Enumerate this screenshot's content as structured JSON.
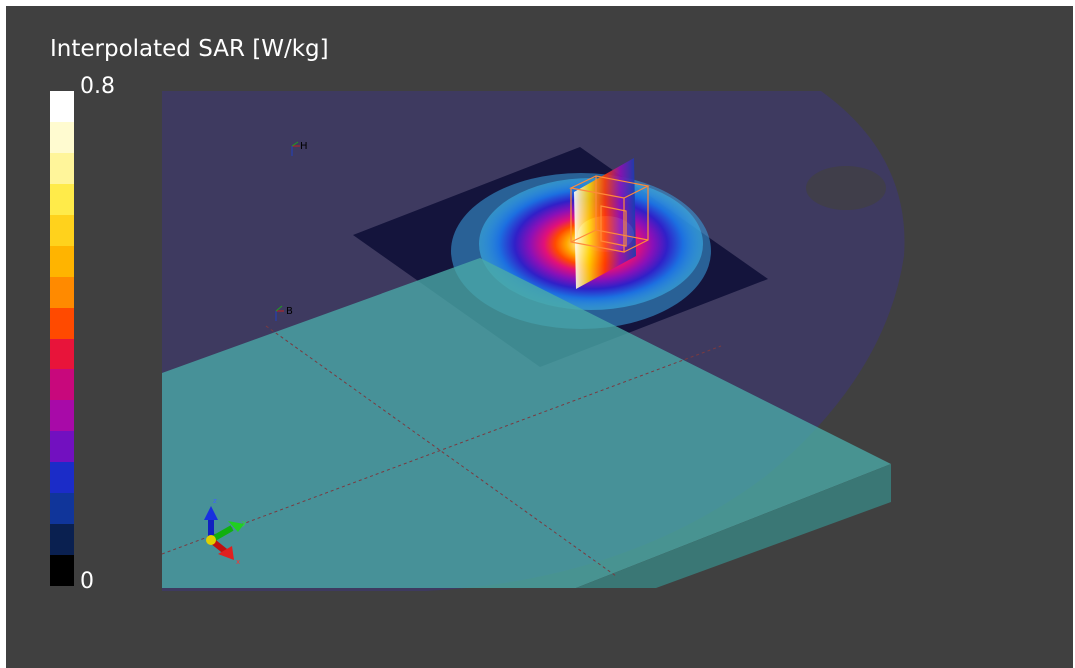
{
  "legend": {
    "title": "Interpolated SAR [W/kg]",
    "max_label": "0.8",
    "min_label": "0",
    "colors": [
      "#ffffff",
      "#fffbd0",
      "#fff59a",
      "#ffeb4a",
      "#ffd21c",
      "#ffb400",
      "#ff8a00",
      "#ff4a00",
      "#e8143a",
      "#c8087c",
      "#a80aa8",
      "#7210c0",
      "#1b2cc8",
      "#10359a",
      "#0a2050",
      "#000000"
    ]
  },
  "markers": [
    {
      "id": "H",
      "label": "H"
    },
    {
      "id": "B",
      "label": "B"
    }
  ],
  "axes": {
    "x": "x",
    "y": "y",
    "z": "z"
  },
  "icons": {
    "orientation_triad": "axes-triad-icon",
    "probe_box": "probe-box-icon"
  }
}
